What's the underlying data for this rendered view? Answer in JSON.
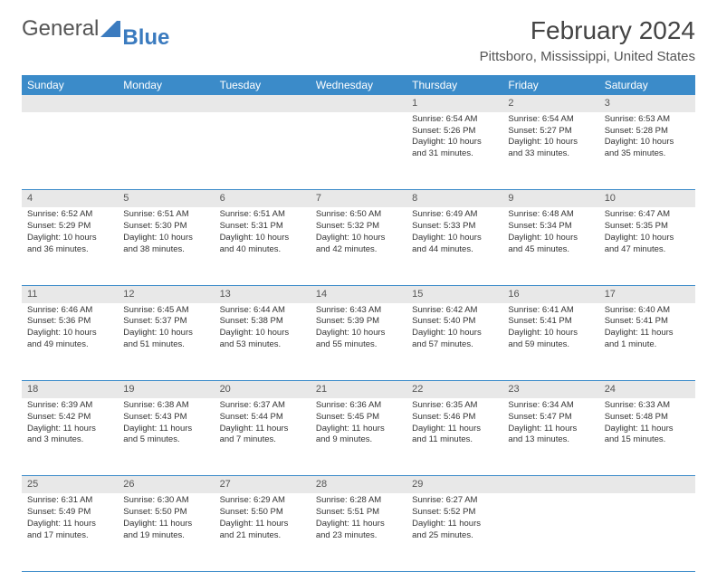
{
  "brand": {
    "part1": "General",
    "part2": "Blue"
  },
  "title": "February 2024",
  "location": "Pittsboro, Mississippi, United States",
  "colors": {
    "header_bg": "#3b8bc9",
    "daynum_bg": "#e8e8e8",
    "rule": "#3b8bc9"
  },
  "day_headers": [
    "Sunday",
    "Monday",
    "Tuesday",
    "Wednesday",
    "Thursday",
    "Friday",
    "Saturday"
  ],
  "weeks": [
    [
      null,
      null,
      null,
      null,
      {
        "n": "1",
        "sr": "Sunrise: 6:54 AM",
        "ss": "Sunset: 5:26 PM",
        "dl": "Daylight: 10 hours and 31 minutes."
      },
      {
        "n": "2",
        "sr": "Sunrise: 6:54 AM",
        "ss": "Sunset: 5:27 PM",
        "dl": "Daylight: 10 hours and 33 minutes."
      },
      {
        "n": "3",
        "sr": "Sunrise: 6:53 AM",
        "ss": "Sunset: 5:28 PM",
        "dl": "Daylight: 10 hours and 35 minutes."
      }
    ],
    [
      {
        "n": "4",
        "sr": "Sunrise: 6:52 AM",
        "ss": "Sunset: 5:29 PM",
        "dl": "Daylight: 10 hours and 36 minutes."
      },
      {
        "n": "5",
        "sr": "Sunrise: 6:51 AM",
        "ss": "Sunset: 5:30 PM",
        "dl": "Daylight: 10 hours and 38 minutes."
      },
      {
        "n": "6",
        "sr": "Sunrise: 6:51 AM",
        "ss": "Sunset: 5:31 PM",
        "dl": "Daylight: 10 hours and 40 minutes."
      },
      {
        "n": "7",
        "sr": "Sunrise: 6:50 AM",
        "ss": "Sunset: 5:32 PM",
        "dl": "Daylight: 10 hours and 42 minutes."
      },
      {
        "n": "8",
        "sr": "Sunrise: 6:49 AM",
        "ss": "Sunset: 5:33 PM",
        "dl": "Daylight: 10 hours and 44 minutes."
      },
      {
        "n": "9",
        "sr": "Sunrise: 6:48 AM",
        "ss": "Sunset: 5:34 PM",
        "dl": "Daylight: 10 hours and 45 minutes."
      },
      {
        "n": "10",
        "sr": "Sunrise: 6:47 AM",
        "ss": "Sunset: 5:35 PM",
        "dl": "Daylight: 10 hours and 47 minutes."
      }
    ],
    [
      {
        "n": "11",
        "sr": "Sunrise: 6:46 AM",
        "ss": "Sunset: 5:36 PM",
        "dl": "Daylight: 10 hours and 49 minutes."
      },
      {
        "n": "12",
        "sr": "Sunrise: 6:45 AM",
        "ss": "Sunset: 5:37 PM",
        "dl": "Daylight: 10 hours and 51 minutes."
      },
      {
        "n": "13",
        "sr": "Sunrise: 6:44 AM",
        "ss": "Sunset: 5:38 PM",
        "dl": "Daylight: 10 hours and 53 minutes."
      },
      {
        "n": "14",
        "sr": "Sunrise: 6:43 AM",
        "ss": "Sunset: 5:39 PM",
        "dl": "Daylight: 10 hours and 55 minutes."
      },
      {
        "n": "15",
        "sr": "Sunrise: 6:42 AM",
        "ss": "Sunset: 5:40 PM",
        "dl": "Daylight: 10 hours and 57 minutes."
      },
      {
        "n": "16",
        "sr": "Sunrise: 6:41 AM",
        "ss": "Sunset: 5:41 PM",
        "dl": "Daylight: 10 hours and 59 minutes."
      },
      {
        "n": "17",
        "sr": "Sunrise: 6:40 AM",
        "ss": "Sunset: 5:41 PM",
        "dl": "Daylight: 11 hours and 1 minute."
      }
    ],
    [
      {
        "n": "18",
        "sr": "Sunrise: 6:39 AM",
        "ss": "Sunset: 5:42 PM",
        "dl": "Daylight: 11 hours and 3 minutes."
      },
      {
        "n": "19",
        "sr": "Sunrise: 6:38 AM",
        "ss": "Sunset: 5:43 PM",
        "dl": "Daylight: 11 hours and 5 minutes."
      },
      {
        "n": "20",
        "sr": "Sunrise: 6:37 AM",
        "ss": "Sunset: 5:44 PM",
        "dl": "Daylight: 11 hours and 7 minutes."
      },
      {
        "n": "21",
        "sr": "Sunrise: 6:36 AM",
        "ss": "Sunset: 5:45 PM",
        "dl": "Daylight: 11 hours and 9 minutes."
      },
      {
        "n": "22",
        "sr": "Sunrise: 6:35 AM",
        "ss": "Sunset: 5:46 PM",
        "dl": "Daylight: 11 hours and 11 minutes."
      },
      {
        "n": "23",
        "sr": "Sunrise: 6:34 AM",
        "ss": "Sunset: 5:47 PM",
        "dl": "Daylight: 11 hours and 13 minutes."
      },
      {
        "n": "24",
        "sr": "Sunrise: 6:33 AM",
        "ss": "Sunset: 5:48 PM",
        "dl": "Daylight: 11 hours and 15 minutes."
      }
    ],
    [
      {
        "n": "25",
        "sr": "Sunrise: 6:31 AM",
        "ss": "Sunset: 5:49 PM",
        "dl": "Daylight: 11 hours and 17 minutes."
      },
      {
        "n": "26",
        "sr": "Sunrise: 6:30 AM",
        "ss": "Sunset: 5:50 PM",
        "dl": "Daylight: 11 hours and 19 minutes."
      },
      {
        "n": "27",
        "sr": "Sunrise: 6:29 AM",
        "ss": "Sunset: 5:50 PM",
        "dl": "Daylight: 11 hours and 21 minutes."
      },
      {
        "n": "28",
        "sr": "Sunrise: 6:28 AM",
        "ss": "Sunset: 5:51 PM",
        "dl": "Daylight: 11 hours and 23 minutes."
      },
      {
        "n": "29",
        "sr": "Sunrise: 6:27 AM",
        "ss": "Sunset: 5:52 PM",
        "dl": "Daylight: 11 hours and 25 minutes."
      },
      null,
      null
    ]
  ]
}
